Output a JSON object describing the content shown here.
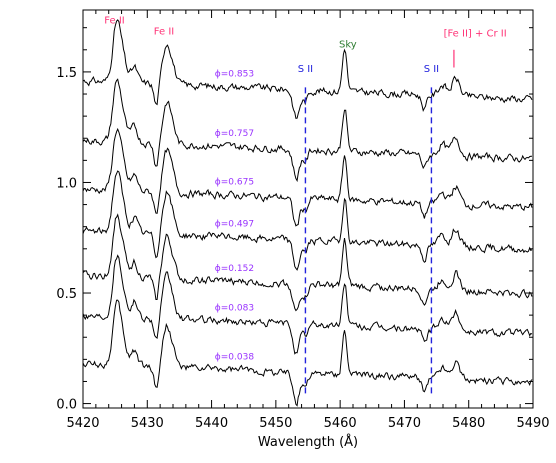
{
  "chart_data": {
    "type": "line",
    "xlabel": "Wavelength (Å)",
    "ylabel": "",
    "xlim": [
      5420,
      5490
    ],
    "ylim": [
      -0.02,
      1.78
    ],
    "xticks": [
      5420,
      5430,
      5440,
      5450,
      5460,
      5470,
      5480,
      5490
    ],
    "yticks": [
      0.0,
      0.5,
      1.0,
      1.5
    ],
    "ytick_labels": [
      "0.0",
      "0.5",
      "1.0",
      "1.5"
    ],
    "grid": false,
    "colors": {
      "spectrum": "#000000",
      "phase": "#9933ff",
      "line_id": "#ff3377",
      "sky": "#2e7d32",
      "s2": "#2222dd"
    },
    "series": [
      {
        "phase_label": "ϕ=0.853",
        "offset": 1.46
      },
      {
        "phase_label": "ϕ=0.757",
        "offset": 1.19
      },
      {
        "phase_label": "ϕ=0.675",
        "offset": 0.97
      },
      {
        "phase_label": "ϕ=0.497",
        "offset": 0.78
      },
      {
        "phase_label": "ϕ=0.152",
        "offset": 0.58
      },
      {
        "phase_label": "ϕ=0.083",
        "offset": 0.4
      },
      {
        "phase_label": "ϕ=0.038",
        "offset": 0.18
      }
    ],
    "features": [
      {
        "center": 5425.2,
        "width": 0.6,
        "depth": 0.25
      },
      {
        "center": 5426.2,
        "width": 0.6,
        "depth": 0.1
      },
      {
        "center": 5428.0,
        "width": 0.5,
        "depth": 0.07
      },
      {
        "center": 5431.4,
        "width": 0.35,
        "depth": -0.1
      },
      {
        "center": 5433.0,
        "width": 0.6,
        "depth": 0.18
      },
      {
        "center": 5434.0,
        "width": 0.5,
        "depth": 0.06
      },
      {
        "center": 5453.2,
        "width": 0.5,
        "depth": -0.13
      },
      {
        "center": 5454.6,
        "width": 0.4,
        "depth": -0.05
      },
      {
        "center": 5460.7,
        "width": 0.35,
        "depth": 0.2
      },
      {
        "center": 5473.1,
        "width": 0.4,
        "depth": -0.06
      },
      {
        "center": 5475.9,
        "width": 0.6,
        "depth": 0.05
      },
      {
        "center": 5478.0,
        "width": 0.6,
        "depth": 0.08
      }
    ],
    "vertical_lines": [
      {
        "x": 5454.6,
        "label": "S II"
      },
      {
        "x": 5474.2,
        "label": "S II"
      }
    ],
    "annotations": [
      {
        "text": "Fe II",
        "x": 5424.9,
        "y": 1.72,
        "color": "line_id"
      },
      {
        "text": "Fe II",
        "x": 5432.6,
        "y": 1.67,
        "color": "line_id"
      },
      {
        "text": "Sky",
        "x": 5461.2,
        "y": 1.61,
        "color": "sky"
      },
      {
        "text": "[Fe II] + Cr II",
        "x": 5481.0,
        "y": 1.66,
        "color": "line_id"
      }
    ],
    "marker_tick": {
      "x": 5477.7,
      "y0": 1.52,
      "y1": 1.6
    }
  }
}
